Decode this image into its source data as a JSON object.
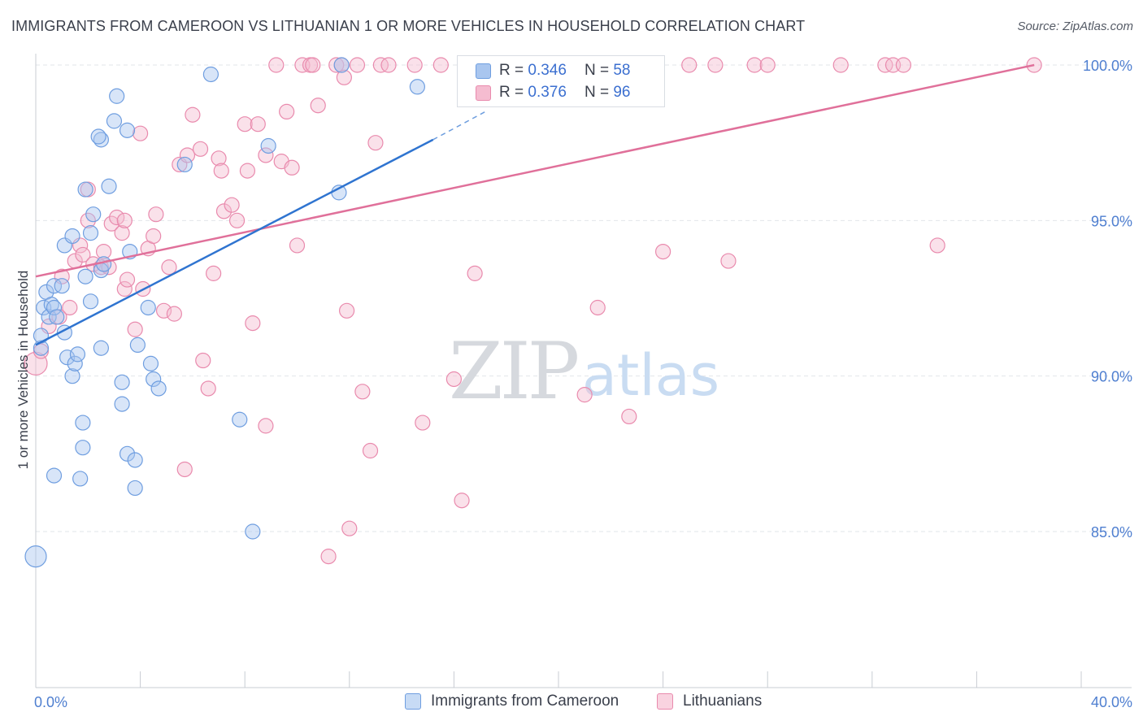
{
  "header": {
    "title": "IMMIGRANTS FROM CAMEROON VS LITHUANIAN 1 OR MORE VEHICLES IN HOUSEHOLD CORRELATION CHART",
    "source": "Source: ZipAtlas.com"
  },
  "watermark": {
    "zip": "ZIP",
    "atlas": "atlas"
  },
  "legend": {
    "rows": [
      {
        "r_label": "R =",
        "r_value": "0.346",
        "n_label": "N =",
        "n_value": "58"
      },
      {
        "r_label": "R =",
        "r_value": "0.376",
        "n_label": "N =",
        "n_value": "96"
      }
    ]
  },
  "colors": {
    "blue_fill": "#a9c6ef",
    "blue_stroke": "#6f9ee0",
    "blue_line": "#2f74d0",
    "pink_fill": "#f5bcd0",
    "pink_stroke": "#e98aad",
    "pink_line": "#e0709a",
    "grid": "#e2e5ea",
    "axis": "#c8ccd3",
    "tick_text": "#4f7fd0"
  },
  "chart_data": {
    "type": "scatter",
    "title": "IMMIGRANTS FROM CAMEROON VS LITHUANIAN 1 OR MORE VEHICLES IN HOUSEHOLD CORRELATION CHART",
    "xlabel": "",
    "ylabel": "1 or more Vehicles in Household",
    "xlim": [
      0,
      40
    ],
    "ylim": [
      80.0,
      100.8
    ],
    "x_tick_labels": [
      "0.0%",
      "40.0%"
    ],
    "y_ticks": [
      85.0,
      90.0,
      95.0,
      100.0
    ],
    "y_tick_labels": [
      "85.0%",
      "90.0%",
      "95.0%",
      "100.0%"
    ],
    "series": [
      {
        "name": "Immigrants from Cameroon",
        "R": 0.346,
        "N": 58,
        "trend": {
          "x0": 0.0,
          "y0": 91.0,
          "x1": 15.2,
          "y1": 97.6,
          "dash_to_x": 17.2,
          "dash_to_y": 98.5
        },
        "points": [
          [
            0.0,
            84.2,
            13
          ],
          [
            0.2,
            90.9,
            9
          ],
          [
            0.2,
            91.3,
            9
          ],
          [
            0.3,
            92.2,
            9
          ],
          [
            0.4,
            92.7,
            9
          ],
          [
            0.5,
            91.9,
            9
          ],
          [
            0.6,
            92.3,
            9
          ],
          [
            0.7,
            92.2,
            9
          ],
          [
            0.8,
            91.9,
            9
          ],
          [
            0.7,
            92.9,
            9
          ],
          [
            1.0,
            92.9,
            9
          ],
          [
            1.1,
            91.4,
            9
          ],
          [
            1.2,
            90.6,
            9
          ],
          [
            1.4,
            90.0,
            9
          ],
          [
            1.5,
            90.4,
            9
          ],
          [
            1.6,
            90.7,
            9
          ],
          [
            0.7,
            86.8,
            9
          ],
          [
            1.7,
            86.7,
            9
          ],
          [
            1.8,
            87.7,
            9
          ],
          [
            1.8,
            88.5,
            9
          ],
          [
            1.1,
            94.2,
            9
          ],
          [
            1.4,
            94.5,
            9
          ],
          [
            1.9,
            93.2,
            9
          ],
          [
            2.1,
            94.6,
            9
          ],
          [
            2.2,
            95.2,
            9
          ],
          [
            2.1,
            92.4,
            9
          ],
          [
            2.5,
            93.4,
            9
          ],
          [
            2.6,
            93.6,
            9
          ],
          [
            2.5,
            90.9,
            9
          ],
          [
            1.9,
            96.0,
            9
          ],
          [
            2.8,
            96.1,
            9
          ],
          [
            2.5,
            97.6,
            9
          ],
          [
            2.4,
            97.7,
            9
          ],
          [
            3.0,
            98.2,
            9
          ],
          [
            3.1,
            99.0,
            9
          ],
          [
            3.5,
            97.9,
            9
          ],
          [
            3.6,
            94.0,
            9
          ],
          [
            3.3,
            89.8,
            9
          ],
          [
            3.3,
            89.1,
            9
          ],
          [
            3.5,
            87.5,
            9
          ],
          [
            3.8,
            87.3,
            9
          ],
          [
            3.8,
            86.4,
            9
          ],
          [
            3.9,
            91.0,
            9
          ],
          [
            4.3,
            92.2,
            9
          ],
          [
            4.4,
            90.4,
            9
          ],
          [
            4.5,
            89.9,
            9
          ],
          [
            4.7,
            89.6,
            9
          ],
          [
            5.7,
            96.8,
            9
          ],
          [
            6.7,
            99.7,
            9
          ],
          [
            7.8,
            88.6,
            9
          ],
          [
            8.3,
            85.0,
            9
          ],
          [
            8.9,
            97.4,
            9
          ],
          [
            11.6,
            95.9,
            9
          ],
          [
            11.7,
            100.0,
            9
          ],
          [
            14.6,
            99.3,
            9
          ],
          [
            16.5,
            100.0,
            9
          ],
          [
            18.6,
            100.0,
            9
          ],
          [
            20.0,
            100.0,
            9
          ]
        ]
      },
      {
        "name": "Lithuanians",
        "R": 0.376,
        "N": 96,
        "trend": {
          "x0": 0.0,
          "y0": 93.2,
          "x1": 38.2,
          "y1": 100.0
        },
        "points": [
          [
            0.0,
            90.4,
            14
          ],
          [
            0.2,
            90.8,
            9
          ],
          [
            0.5,
            91.6,
            9
          ],
          [
            0.9,
            91.9,
            9
          ],
          [
            1.0,
            93.2,
            9
          ],
          [
            1.3,
            92.2,
            9
          ],
          [
            1.5,
            93.7,
            9
          ],
          [
            1.7,
            94.2,
            9
          ],
          [
            1.8,
            93.9,
            9
          ],
          [
            2.0,
            95.0,
            9
          ],
          [
            2.0,
            96.0,
            9
          ],
          [
            2.2,
            93.6,
            9
          ],
          [
            2.5,
            93.5,
            9
          ],
          [
            2.6,
            94.0,
            9
          ],
          [
            2.8,
            93.5,
            9
          ],
          [
            2.9,
            94.9,
            9
          ],
          [
            3.1,
            95.1,
            9
          ],
          [
            3.3,
            94.6,
            9
          ],
          [
            3.4,
            95.0,
            9
          ],
          [
            3.4,
            92.8,
            9
          ],
          [
            3.5,
            93.1,
            9
          ],
          [
            3.8,
            91.5,
            9
          ],
          [
            4.0,
            97.8,
            9
          ],
          [
            4.1,
            92.8,
            9
          ],
          [
            4.3,
            94.1,
            9
          ],
          [
            4.5,
            94.5,
            9
          ],
          [
            4.6,
            95.2,
            9
          ],
          [
            4.9,
            92.1,
            9
          ],
          [
            5.1,
            93.5,
            9
          ],
          [
            5.3,
            92.0,
            9
          ],
          [
            5.5,
            96.8,
            9
          ],
          [
            5.7,
            87.0,
            9
          ],
          [
            5.8,
            97.1,
            9
          ],
          [
            6.0,
            98.4,
            9
          ],
          [
            6.3,
            97.3,
            9
          ],
          [
            6.4,
            90.5,
            9
          ],
          [
            6.6,
            89.6,
            9
          ],
          [
            6.8,
            93.3,
            9
          ],
          [
            7.0,
            97.0,
            9
          ],
          [
            7.1,
            96.6,
            9
          ],
          [
            7.2,
            95.3,
            9
          ],
          [
            7.5,
            95.5,
            9
          ],
          [
            7.7,
            95.0,
            9
          ],
          [
            8.0,
            98.1,
            9
          ],
          [
            8.1,
            96.6,
            9
          ],
          [
            8.3,
            91.7,
            9
          ],
          [
            8.5,
            98.1,
            9
          ],
          [
            8.8,
            97.1,
            9
          ],
          [
            8.8,
            88.4,
            9
          ],
          [
            9.2,
            100.0,
            9
          ],
          [
            9.4,
            96.9,
            9
          ],
          [
            9.6,
            98.5,
            9
          ],
          [
            9.8,
            96.7,
            9
          ],
          [
            10.0,
            94.2,
            9
          ],
          [
            10.2,
            100.0,
            9
          ],
          [
            10.5,
            100.0,
            9
          ],
          [
            10.6,
            100.0,
            9
          ],
          [
            10.8,
            98.7,
            9
          ],
          [
            11.2,
            84.2,
            9
          ],
          [
            11.5,
            100.0,
            9
          ],
          [
            11.7,
            100.0,
            9
          ],
          [
            11.8,
            99.6,
            9
          ],
          [
            11.9,
            92.1,
            9
          ],
          [
            12.0,
            85.1,
            9
          ],
          [
            12.3,
            100.0,
            9
          ],
          [
            12.5,
            89.5,
            9
          ],
          [
            12.8,
            87.6,
            9
          ],
          [
            13.0,
            97.5,
            9
          ],
          [
            13.2,
            100.0,
            9
          ],
          [
            13.5,
            100.0,
            9
          ],
          [
            14.5,
            100.0,
            9
          ],
          [
            14.8,
            88.5,
            9
          ],
          [
            15.5,
            100.0,
            9
          ],
          [
            16.0,
            89.9,
            9
          ],
          [
            16.3,
            86.0,
            9
          ],
          [
            16.8,
            93.3,
            9
          ],
          [
            18.0,
            100.0,
            9
          ],
          [
            19.5,
            100.0,
            9
          ],
          [
            20.3,
            100.0,
            9
          ],
          [
            21.0,
            89.4,
            9
          ],
          [
            21.5,
            92.2,
            9
          ],
          [
            22.5,
            100.0,
            9
          ],
          [
            22.7,
            88.7,
            9
          ],
          [
            23.5,
            100.0,
            9
          ],
          [
            24.0,
            94.0,
            9
          ],
          [
            25.0,
            100.0,
            9
          ],
          [
            26.0,
            100.0,
            9
          ],
          [
            26.5,
            93.7,
            9
          ],
          [
            27.5,
            100.0,
            9
          ],
          [
            28.0,
            100.0,
            9
          ],
          [
            30.8,
            100.0,
            9
          ],
          [
            32.5,
            100.0,
            9
          ],
          [
            32.8,
            100.0,
            9
          ],
          [
            33.2,
            100.0,
            9
          ],
          [
            34.5,
            94.2,
            9
          ],
          [
            38.2,
            100.0,
            9
          ]
        ]
      }
    ]
  }
}
